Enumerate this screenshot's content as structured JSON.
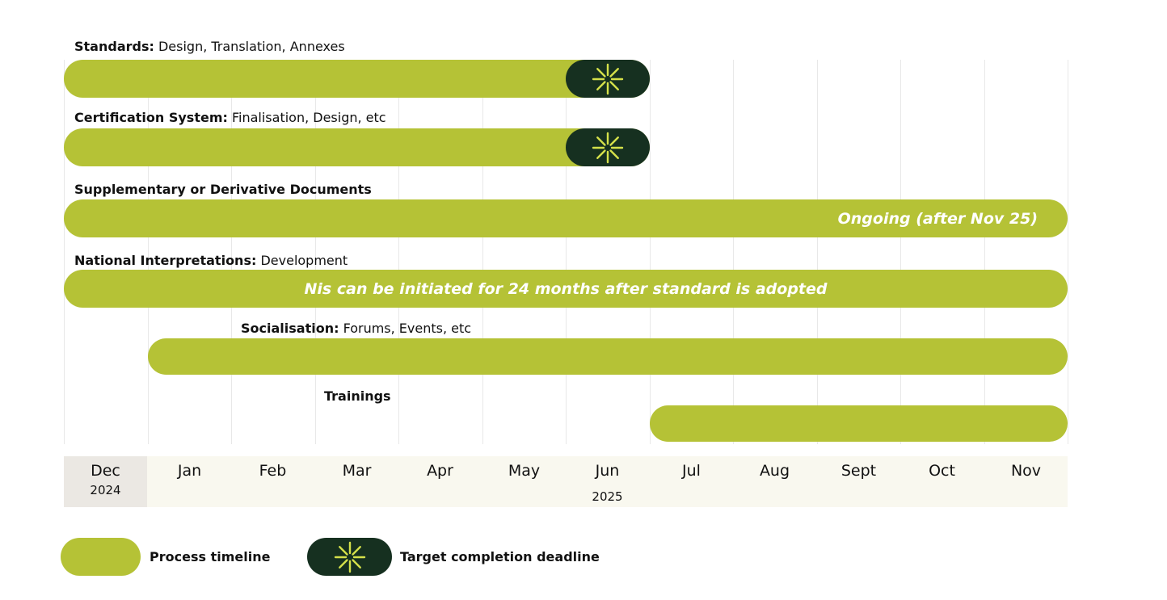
{
  "chart_data": {
    "type": "timeline",
    "months": [
      "Dec",
      "Jan",
      "Feb",
      "Mar",
      "Apr",
      "May",
      "Jun",
      "Jul",
      "Aug",
      "Sept",
      "Oct",
      "Nov"
    ],
    "year_labels": [
      {
        "month": "Dec",
        "year": "2024"
      },
      {
        "month": "Jun",
        "year": "2025"
      }
    ],
    "current_month": "Dec",
    "tracks": [
      {
        "title": "Standards:",
        "detail": "Design, Translation, Annexes",
        "start": 0,
        "end": 7,
        "deadline": 6,
        "note": ""
      },
      {
        "title": "Certification System:",
        "detail": "Finalisation, Design, etc",
        "start": 0,
        "end": 7,
        "deadline": 6,
        "note": ""
      },
      {
        "title": "Supplementary or Derivative Documents",
        "detail": "",
        "start": 0,
        "end": 12,
        "deadline": null,
        "note": "Ongoing (after Nov 25)",
        "note_align": "right"
      },
      {
        "title": "National Interpretations:",
        "detail": "Development",
        "start": 0,
        "end": 12,
        "deadline": null,
        "note": "Nis can be initiated for 24 months after standard is adopted",
        "note_align": "center"
      },
      {
        "title": "Socialisation:",
        "detail": "Forums, Events, etc",
        "start": 1,
        "end": 12,
        "deadline": null,
        "note": ""
      },
      {
        "title": "Trainings",
        "detail": "",
        "start": 7,
        "end": 12,
        "deadline": null,
        "note": ""
      }
    ],
    "legend": [
      {
        "label": "Process timeline",
        "kind": "bar"
      },
      {
        "label": "Target completion deadline",
        "kind": "deadline"
      }
    ],
    "colors": {
      "bar": "#b5c236",
      "deadline": "#163020",
      "deadline_icon": "#d4e04a"
    }
  }
}
